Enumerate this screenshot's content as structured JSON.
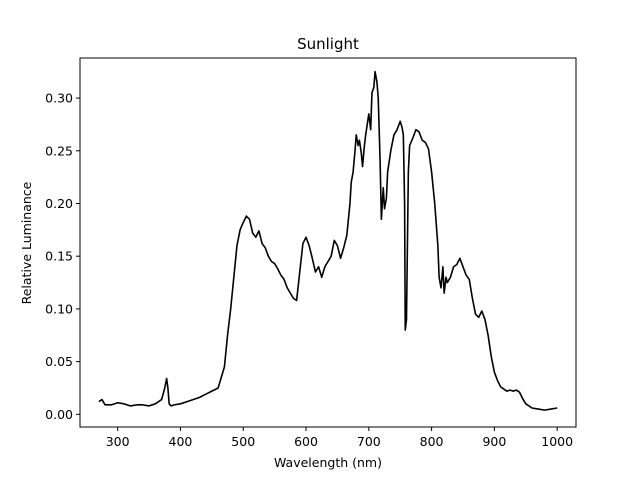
{
  "chart_data": {
    "type": "line",
    "title": "Sunlight",
    "xlabel": "Wavelength (nm)",
    "ylabel": "Relative Luminance",
    "xlim": [
      240,
      1030
    ],
    "ylim": [
      -0.012,
      0.338
    ],
    "xticks": [
      300,
      400,
      500,
      600,
      700,
      800,
      900,
      1000
    ],
    "yticks": [
      0.0,
      0.05,
      0.1,
      0.15,
      0.2,
      0.25,
      0.3
    ],
    "xtick_labels": [
      "300",
      "400",
      "500",
      "600",
      "700",
      "800",
      "900",
      "1000"
    ],
    "ytick_labels": [
      "0.00",
      "0.05",
      "0.10",
      "0.15",
      "0.20",
      "0.25",
      "0.30"
    ],
    "grid": false,
    "series": [
      {
        "color": "#000000",
        "x": [
          270,
          275,
          280,
          290,
          300,
          310,
          320,
          330,
          340,
          350,
          360,
          370,
          375,
          378,
          380,
          382,
          385,
          390,
          400,
          410,
          420,
          430,
          440,
          450,
          460,
          470,
          475,
          480,
          485,
          490,
          495,
          500,
          505,
          510,
          515,
          520,
          525,
          530,
          535,
          540,
          545,
          550,
          555,
          560,
          565,
          570,
          575,
          580,
          585,
          590,
          595,
          600,
          605,
          610,
          615,
          620,
          625,
          630,
          635,
          640,
          645,
          650,
          655,
          660,
          665,
          670,
          672,
          675,
          678,
          680,
          683,
          685,
          688,
          690,
          693,
          695,
          700,
          703,
          705,
          708,
          710,
          713,
          715,
          718,
          720,
          723,
          725,
          728,
          730,
          735,
          740,
          745,
          750,
          753,
          755,
          757,
          758,
          760,
          763,
          765,
          770,
          775,
          780,
          785,
          790,
          795,
          800,
          805,
          810,
          812,
          815,
          818,
          820,
          823,
          825,
          830,
          835,
          840,
          845,
          850,
          855,
          860,
          865,
          870,
          875,
          880,
          885,
          890,
          895,
          900,
          905,
          910,
          915,
          920,
          925,
          930,
          935,
          940,
          945,
          950,
          960,
          970,
          980,
          990,
          1000
        ],
        "y": [
          0.012,
          0.014,
          0.009,
          0.009,
          0.011,
          0.01,
          0.008,
          0.009,
          0.009,
          0.008,
          0.01,
          0.014,
          0.025,
          0.034,
          0.025,
          0.01,
          0.008,
          0.009,
          0.01,
          0.012,
          0.014,
          0.016,
          0.019,
          0.022,
          0.025,
          0.045,
          0.075,
          0.1,
          0.13,
          0.16,
          0.175,
          0.182,
          0.188,
          0.185,
          0.172,
          0.168,
          0.174,
          0.162,
          0.158,
          0.15,
          0.145,
          0.143,
          0.138,
          0.132,
          0.128,
          0.12,
          0.115,
          0.11,
          0.108,
          0.135,
          0.162,
          0.168,
          0.16,
          0.148,
          0.135,
          0.14,
          0.13,
          0.14,
          0.145,
          0.15,
          0.165,
          0.16,
          0.148,
          0.158,
          0.17,
          0.2,
          0.22,
          0.23,
          0.25,
          0.265,
          0.255,
          0.26,
          0.248,
          0.235,
          0.255,
          0.265,
          0.285,
          0.27,
          0.305,
          0.31,
          0.325,
          0.315,
          0.3,
          0.24,
          0.185,
          0.215,
          0.195,
          0.205,
          0.23,
          0.25,
          0.265,
          0.27,
          0.278,
          0.272,
          0.265,
          0.2,
          0.08,
          0.09,
          0.23,
          0.255,
          0.262,
          0.27,
          0.268,
          0.26,
          0.258,
          0.252,
          0.23,
          0.2,
          0.16,
          0.13,
          0.12,
          0.14,
          0.115,
          0.13,
          0.125,
          0.13,
          0.14,
          0.142,
          0.148,
          0.14,
          0.132,
          0.128,
          0.11,
          0.095,
          0.092,
          0.098,
          0.09,
          0.075,
          0.055,
          0.04,
          0.032,
          0.026,
          0.024,
          0.022,
          0.023,
          0.022,
          0.023,
          0.021,
          0.015,
          0.01,
          0.006,
          0.005,
          0.004,
          0.005,
          0.006
        ]
      }
    ]
  }
}
